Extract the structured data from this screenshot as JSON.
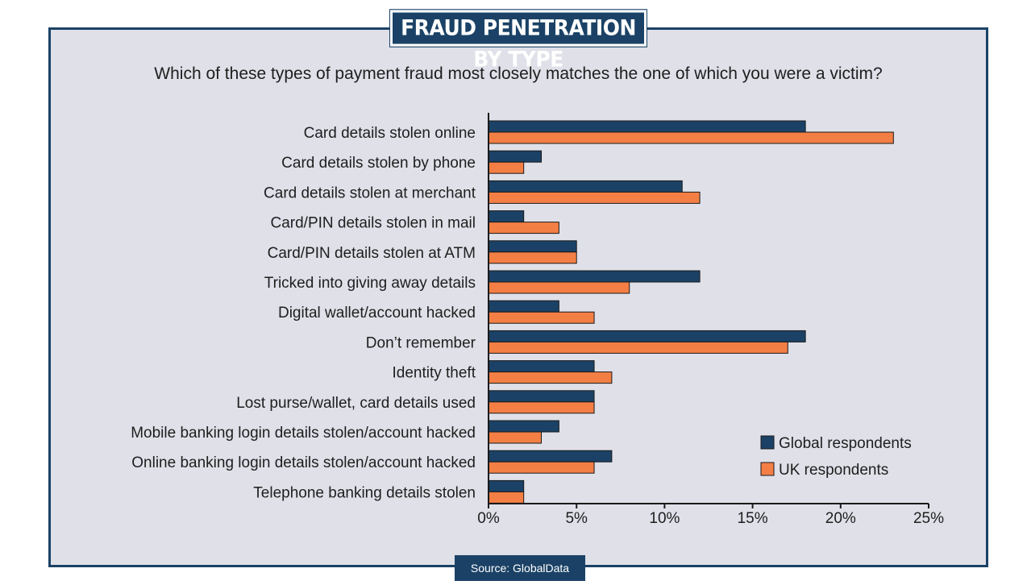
{
  "header": {
    "title": "FRAUD PENETRATION BY TYPE"
  },
  "question": "Which of these types of payment fraud most closely matches the one of which you were a victim?",
  "source": "Source: GlobalData",
  "colors": {
    "global": "#1b4266",
    "uk": "#f47f45",
    "panel": "#dfe0e8"
  },
  "chart_data": {
    "type": "bar",
    "orientation": "horizontal",
    "categories": [
      "Card details stolen online",
      "Card details stolen by phone",
      "Card details stolen at merchant",
      "Card/PIN details stolen in mail",
      "Card/PIN details stolen at ATM",
      "Tricked into giving away details",
      "Digital wallet/account hacked",
      "Don’t remember",
      "Identity theft",
      "Lost purse/wallet, card details used",
      "Mobile banking login details stolen/account hacked",
      "Online banking login details stolen/account hacked",
      "Telephone banking details stolen"
    ],
    "series": [
      {
        "name": "Global respondents",
        "color": "#1b4266",
        "values": [
          18,
          3,
          11,
          2,
          5,
          12,
          4,
          18,
          6,
          6,
          4,
          7,
          2
        ]
      },
      {
        "name": "UK respondents",
        "color": "#f47f45",
        "values": [
          23,
          2,
          12,
          4,
          5,
          8,
          6,
          17,
          7,
          6,
          3,
          6,
          2
        ]
      }
    ],
    "xlim": [
      0,
      25
    ],
    "ticks": [
      0,
      5,
      10,
      15,
      20,
      25
    ],
    "tick_labels": [
      "0%",
      "5%",
      "10%",
      "15%",
      "20%",
      "25%"
    ],
    "legend_position": "bottom-right",
    "grid": false
  }
}
